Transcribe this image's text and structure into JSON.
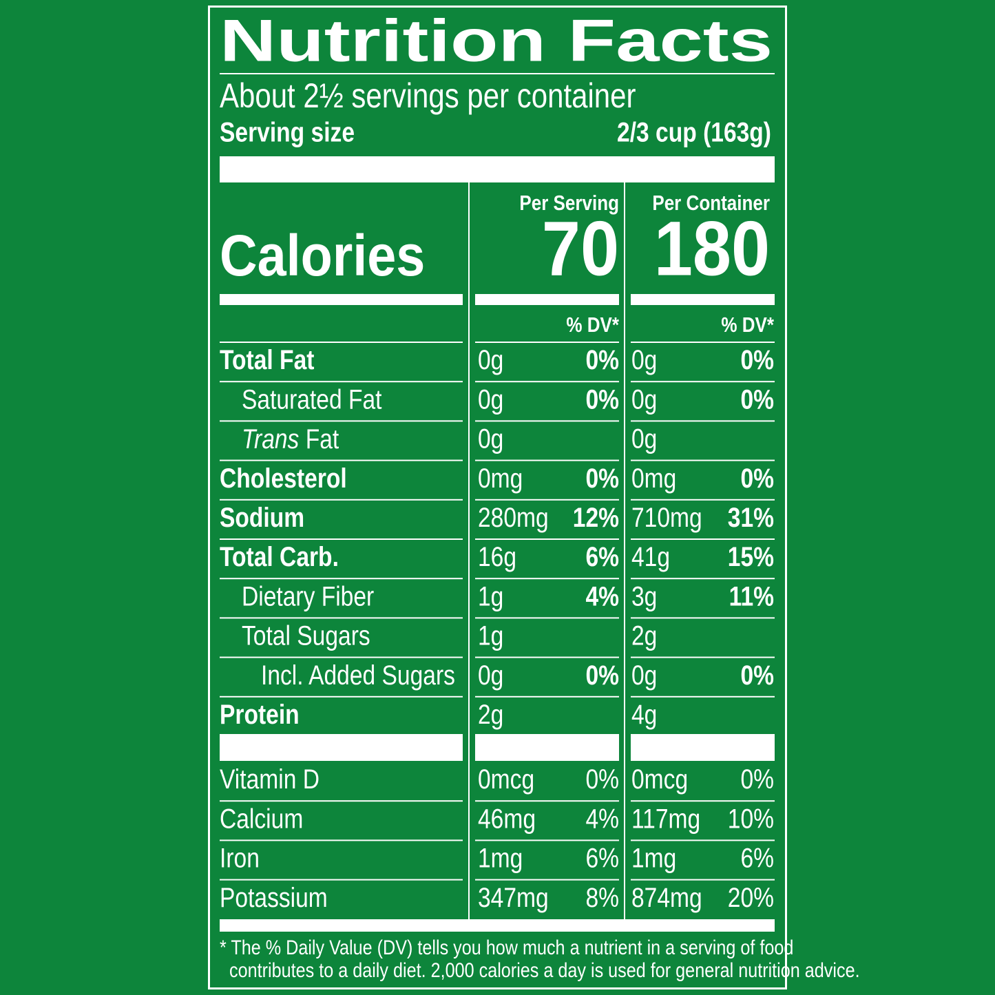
{
  "title": "Nutrition Facts",
  "servings": "About 2½ servings per container",
  "serving_size_label": "Serving size",
  "serving_size": "2/3 cup (163g)",
  "columns": [
    "Per Serving",
    "Per Container"
  ],
  "calories_label": "Calories",
  "calories": [
    "70",
    "180"
  ],
  "dv_header": "% DV*",
  "rows": [
    {
      "name": "Total Fat",
      "serving": "0g",
      "serving_dv": "0%",
      "container": "0g",
      "container_dv": "0%"
    },
    {
      "name": "Saturated Fat",
      "serving": "0g",
      "serving_dv": "0%",
      "container": "0g",
      "container_dv": "0%"
    },
    {
      "name_italic": "Trans",
      "name": "Fat",
      "serving": "0g",
      "container": "0g"
    },
    {
      "name": "Cholesterol",
      "serving": "0mg",
      "serving_dv": "0%",
      "container": "0mg",
      "container_dv": "0%"
    },
    {
      "name": "Sodium",
      "serving": "280mg",
      "serving_dv": "12%",
      "container": "710mg",
      "container_dv": "31%"
    },
    {
      "name": "Total Carb.",
      "serving": "16g",
      "serving_dv": "6%",
      "container": "41g",
      "container_dv": "15%"
    },
    {
      "name": "Dietary Fiber",
      "serving": "1g",
      "serving_dv": "4%",
      "container": "3g",
      "container_dv": "11%"
    },
    {
      "name": "Total Sugars",
      "serving": "1g",
      "container": "2g"
    },
    {
      "name": "Incl. Added Sugars",
      "serving": "0g",
      "serving_dv": "0%",
      "container": "0g",
      "container_dv": "0%"
    },
    {
      "name": "Protein",
      "serving": "2g",
      "container": "4g"
    }
  ],
  "vitamins": [
    {
      "name": "Vitamin D",
      "serving": "0mcg",
      "serving_dv": "0%",
      "container": "0mcg",
      "container_dv": "0%"
    },
    {
      "name": "Calcium",
      "serving": "46mg",
      "serving_dv": "4%",
      "container": "117mg",
      "container_dv": "10%"
    },
    {
      "name": "Iron",
      "serving": "1mg",
      "serving_dv": "6%",
      "container": "1mg",
      "container_dv": "6%"
    },
    {
      "name": "Potassium",
      "serving": "347mg",
      "serving_dv": "8%",
      "container": "874mg",
      "container_dv": "20%"
    }
  ],
  "footnote": [
    "* The % Daily Value (DV) tells you how much a nutrient in a serving of food",
    "contributes to a daily diet. 2,000 calories a day is used for general nutrition advice."
  ]
}
